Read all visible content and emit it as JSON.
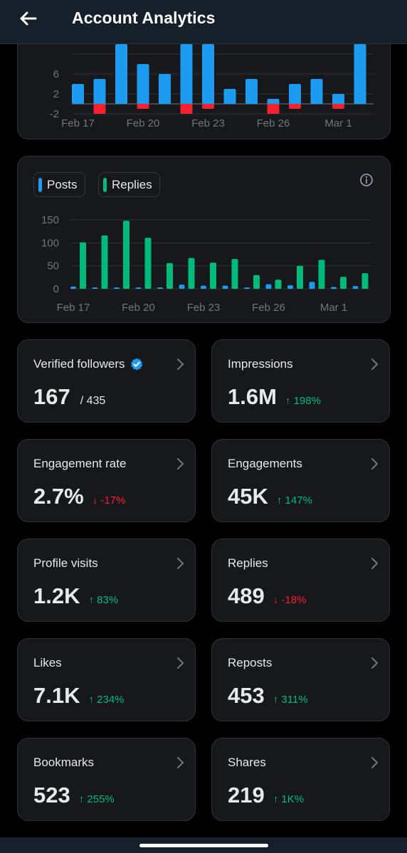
{
  "header": {
    "title": "Account Analytics",
    "back_icon": "arrow-left-icon"
  },
  "colors": {
    "posts": "#1d9bf0",
    "replies": "#00ba7c",
    "negative": "#f4212e",
    "grid": "#2f3336",
    "up": "#00ba7c",
    "down": "#f4212e"
  },
  "chart_data": [
    {
      "type": "bar",
      "note": "top chart, partially scrolled out of view above",
      "categories": [
        "Feb 17",
        "Feb 18",
        "Feb 19",
        "Feb 20",
        "Feb 21",
        "Feb 22",
        "Feb 23",
        "Feb 24",
        "Feb 25",
        "Feb 26",
        "Feb 27",
        "Feb 28",
        "Mar 1",
        "Mar 2"
      ],
      "tick_labels": [
        "Feb 17",
        "Feb 20",
        "Feb 23",
        "Feb 26",
        "Mar 1"
      ],
      "y_tick_labels": [
        "6",
        "2",
        "-2"
      ],
      "series": [
        {
          "values": [
            4,
            5,
            12,
            8,
            6,
            12,
            12,
            3,
            5,
            1,
            4,
            5,
            2,
            12
          ],
          "color": "#1d9bf0"
        },
        {
          "values": [
            0,
            -2,
            0,
            -1,
            0,
            -2,
            -1,
            0,
            0,
            -2,
            -1,
            0,
            -1,
            0
          ],
          "color": "#f4212e"
        }
      ],
      "ylim": [
        -2,
        11
      ],
      "grid": true
    },
    {
      "type": "bar",
      "categories": [
        "Feb 17",
        "Feb 18",
        "Feb 19",
        "Feb 20",
        "Feb 21",
        "Feb 22",
        "Feb 23",
        "Feb 24",
        "Feb 25",
        "Feb 26",
        "Feb 27",
        "Feb 28",
        "Mar 1",
        "Mar 2"
      ],
      "tick_labels": [
        "Feb 17",
        "Feb 20",
        "Feb 23",
        "Feb 26",
        "Mar 1"
      ],
      "y_tick_labels": [
        "150",
        "100",
        "50",
        "0"
      ],
      "series": [
        {
          "name": "Posts",
          "values": [
            5,
            3,
            1,
            2,
            3,
            9,
            7,
            7,
            3,
            10,
            8,
            15,
            4,
            6
          ],
          "color": "#1d9bf0"
        },
        {
          "name": "Replies",
          "values": [
            101,
            116,
            148,
            111,
            56,
            67,
            57,
            65,
            30,
            20,
            50,
            63,
            26,
            34
          ],
          "color": "#00ba7c"
        }
      ],
      "ylim": [
        0,
        150
      ],
      "grid": true,
      "legend": "top-left"
    }
  ],
  "legend": {
    "posts_label": "Posts",
    "replies_label": "Replies",
    "info_icon": "info-icon"
  },
  "metrics": [
    {
      "label": "Verified followers",
      "value": "167",
      "sub": "/ 435",
      "badge_icon": "verified-badge-icon"
    },
    {
      "label": "Impressions",
      "value": "1.6M",
      "change": "198%",
      "direction": "up"
    },
    {
      "label": "Engagement rate",
      "value": "2.7%",
      "change": "-17%",
      "direction": "down"
    },
    {
      "label": "Engagements",
      "value": "45K",
      "change": "147%",
      "direction": "up"
    },
    {
      "label": "Profile visits",
      "value": "1.2K",
      "change": "83%",
      "direction": "up"
    },
    {
      "label": "Replies",
      "value": "489",
      "change": "-18%",
      "direction": "down"
    },
    {
      "label": "Likes",
      "value": "7.1K",
      "change": "234%",
      "direction": "up"
    },
    {
      "label": "Reposts",
      "value": "453",
      "change": "311%",
      "direction": "up"
    },
    {
      "label": "Bookmarks",
      "value": "523",
      "change": "255%",
      "direction": "up"
    },
    {
      "label": "Shares",
      "value": "219",
      "change": "1K%",
      "direction": "up"
    }
  ]
}
